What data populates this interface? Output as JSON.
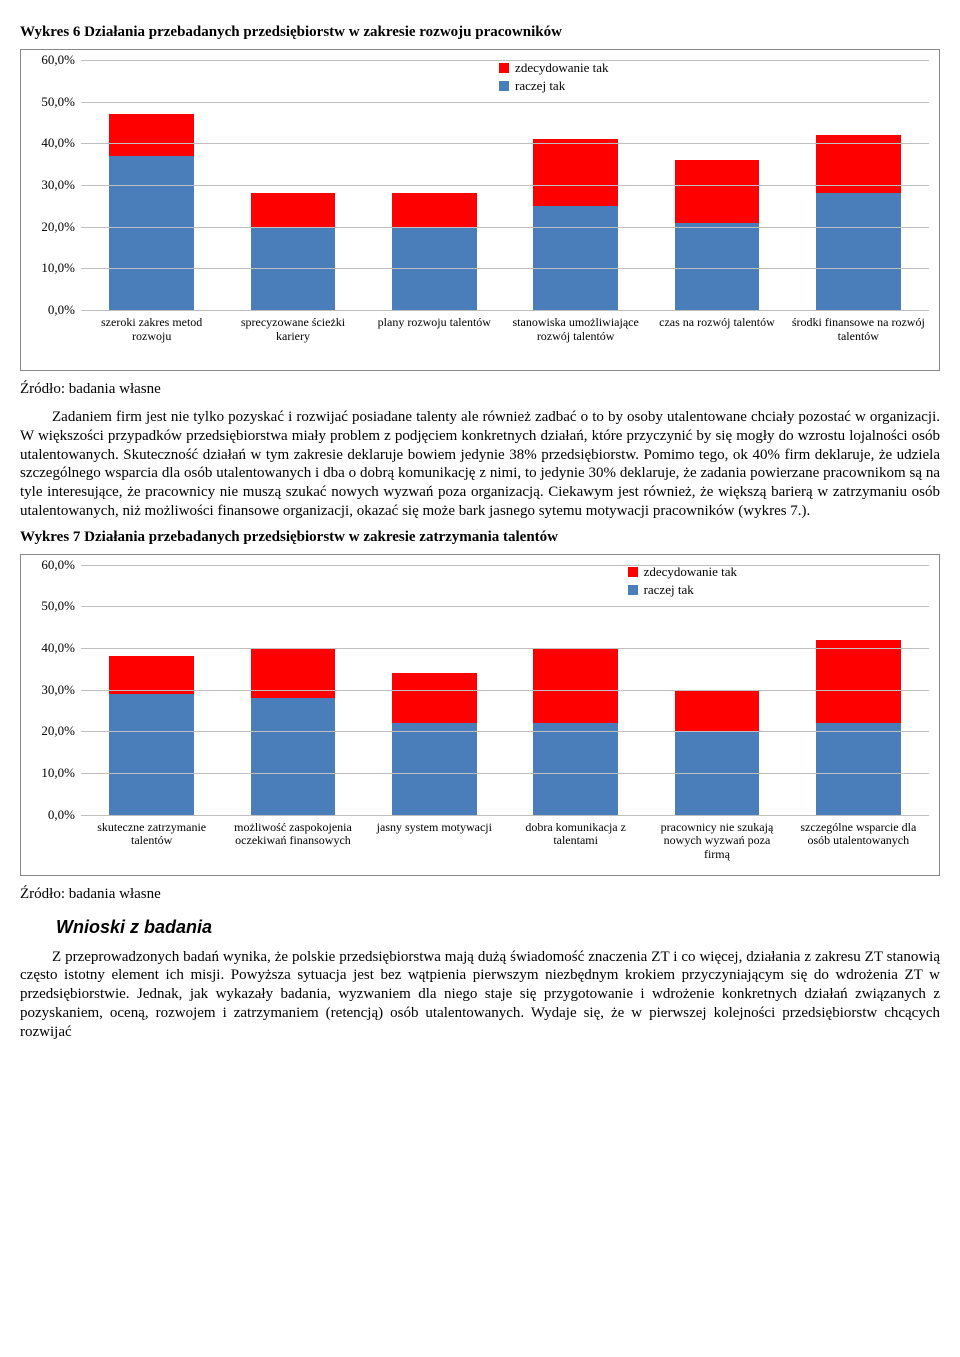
{
  "chart6": {
    "title": "Wykres 6 Działania przebadanych przedsiębiorstw w zakresie rozwoju pracowników",
    "type": "stacked-bar",
    "ymax": 60,
    "ytick_step": 10,
    "background_color": "#ffffff",
    "grid_color": "#bfbfbf",
    "legend_top_pct": 3,
    "legend_right_pct": 36,
    "legend": [
      {
        "label": "zdecydowanie tak",
        "color": "#ff0000"
      },
      {
        "label": "raczej tak",
        "color": "#4a7ebb"
      }
    ],
    "categories": [
      "szeroki zakres metod rozwoju",
      "sprecyzowane ścieżki kariery",
      "plany rozwoju talentów",
      "stanowiska umożliwiające rozwój talentów",
      "czas na rozwój talentów",
      "środki finansowe na rozwój talentów"
    ],
    "series": {
      "raczej_tak": [
        37,
        20,
        20,
        25,
        21,
        28
      ],
      "zdecydowanie_tak": [
        10,
        8,
        8,
        16,
        15,
        14
      ]
    },
    "series_colors": {
      "raczej_tak": "#4a7ebb",
      "zdecydowanie_tak": "#ff0000"
    },
    "source": "Źródło: badania własne"
  },
  "para1": "Zadaniem firm jest nie tylko pozyskać i rozwijać posiadane talenty ale również zadbać o to by osoby utalentowane chciały pozostać w organizacji. W większości przypadków przedsiębiorstwa miały problem z podjęciem konkretnych działań, które przyczynić by się mogły do wzrostu lojalności osób utalentowanych. Skuteczność działań w tym zakresie deklaruje bowiem jedynie 38% przedsiębiorstw. Pomimo tego, ok 40% firm deklaruje, że udziela szczególnego wsparcia dla osób utalentowanych i dba o dobrą komunikację z nimi, to jedynie 30% deklaruje, że zadania powierzane pracownikom są na tyle interesujące, że pracownicy nie muszą szukać nowych wyzwań poza organizacją. Ciekawym jest również, że większą barierą w zatrzymaniu osób utalentowanych, niż możliwości finansowe organizacji, okazać się może bark jasnego sytemu motywacji pracowników (wykres 7.).",
  "chart7": {
    "title": "Wykres 7 Działania przebadanych przedsiębiorstw w zakresie zatrzymania talentów",
    "type": "stacked-bar",
    "ymax": 60,
    "ytick_step": 10,
    "background_color": "#ffffff",
    "grid_color": "#bfbfbf",
    "legend_top_pct": 3,
    "legend_right_pct": 22,
    "legend": [
      {
        "label": "zdecydowanie tak",
        "color": "#ff0000"
      },
      {
        "label": "raczej tak",
        "color": "#4a7ebb"
      }
    ],
    "categories": [
      "skuteczne zatrzymanie talentów",
      "możliwość zaspokojenia oczekiwań finansowych",
      "jasny system motywacji",
      "dobra komunikacja z talentami",
      "pracownicy nie szukają nowych wyzwań poza firmą",
      "szczególne wsparcie dla osób utalentowanych"
    ],
    "series": {
      "raczej_tak": [
        29,
        28,
        22,
        22,
        20,
        22
      ],
      "zdecydowanie_tak": [
        9,
        12,
        12,
        18,
        10,
        20
      ]
    },
    "series_colors": {
      "raczej_tak": "#4a7ebb",
      "zdecydowanie_tak": "#ff0000"
    },
    "source": "Źródło: badania własne"
  },
  "section_heading": "Wnioski z badania",
  "para2": "Z przeprowadzonych badań wynika, że polskie przedsiębiorstwa mają dużą świadomość znaczenia ZT i co więcej, działania z zakresu ZT stanowią często istotny element ich misji. Powyższa sytuacja jest bez wątpienia pierwszym niezbędnym krokiem przyczyniającym się do wdrożenia ZT w przedsiębiorstwie. Jednak, jak wykazały badania, wyzwaniem dla niego staje się przygotowanie i wdrożenie konkretnych działań związanych z pozyskaniem, oceną, rozwojem i zatrzymaniem (retencją) osób utalentowanych. Wydaje się, że w pierwszej kolejności przedsiębiorstw chcących rozwijać"
}
